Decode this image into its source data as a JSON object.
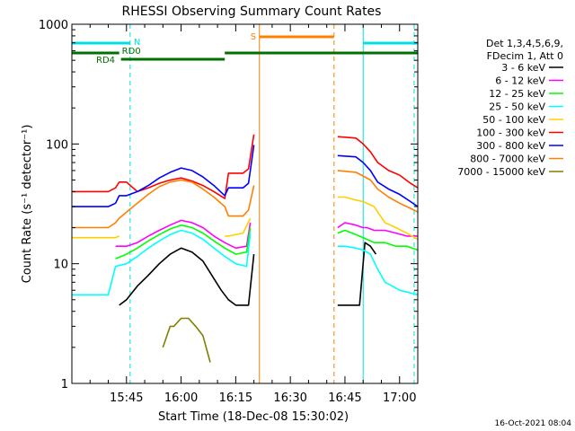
{
  "chart_data": {
    "type": "line",
    "title": "RHESSI Observing Summary Count Rates",
    "xlabel": "Start Time (18-Dec-08 15:30:02)",
    "ylabel": "Count Rate (s⁻¹ detector⁻¹)",
    "x_unit": "minutes after 15:30",
    "xlim": [
      0,
      95
    ],
    "ylim": [
      1,
      1000
    ],
    "yscale": "log",
    "x_ticks": [
      {
        "x": 15,
        "label": "15:45"
      },
      {
        "x": 30,
        "label": "16:00"
      },
      {
        "x": 45,
        "label": "16:15"
      },
      {
        "x": 60,
        "label": "16:30"
      },
      {
        "x": 75,
        "label": "16:45"
      },
      {
        "x": 90,
        "label": "17:00"
      }
    ],
    "y_ticks": [
      {
        "y": 1,
        "label": "1"
      },
      {
        "y": 10,
        "label": "10"
      },
      {
        "y": 100,
        "label": "100"
      },
      {
        "y": 1000,
        "label": "1000"
      }
    ],
    "legend_header": [
      "Det 1,3,4,5,6,9,",
      "FDecim 1, Att 0"
    ],
    "legend_position": "right",
    "footer_date": "16-Oct-2021 08:04",
    "flags": {
      "N_label": "N",
      "S_label": "S",
      "RD0_label": "RD0",
      "RD4_label": "RD4",
      "N_color": "#00e0e0",
      "S_color": "#ff8000",
      "RD_color": "#007000",
      "night_intervals": [
        [
          0,
          16
        ],
        [
          80,
          95
        ]
      ],
      "saa_interval": [
        51.5,
        72
      ],
      "rd0_interval": [
        0,
        13
      ],
      "rd4_intervals": [
        [
          13.5,
          42
        ],
        [
          42,
          95
        ]
      ],
      "cyan_verticals": [
        16,
        80,
        94
      ],
      "orange_verticals": [
        51.5,
        72
      ]
    },
    "data_gaps": [
      [
        49,
        51.5
      ],
      [
        51.5,
        72
      ]
    ],
    "series": [
      {
        "name": "3 - 6 keV",
        "color": "#000000",
        "x": [
          13,
          15,
          18,
          21,
          24,
          27,
          30,
          33,
          36,
          39,
          41,
          43,
          45,
          47,
          48.5,
          50,
          73,
          75,
          77,
          79,
          80.5,
          82,
          83.5
        ],
        "y": [
          4.5,
          5,
          6.5,
          8,
          10,
          12,
          13.5,
          12.5,
          10.5,
          7.5,
          6,
          5,
          4.5,
          4.5,
          4.5,
          12,
          4.5,
          4.5,
          4.5,
          4.5,
          15,
          14,
          12
        ]
      },
      {
        "name": "6 - 12 keV",
        "color": "#ff00ff",
        "x": [
          12,
          15,
          18,
          21,
          24,
          27,
          30,
          33,
          36,
          39,
          42,
          45,
          48,
          49,
          73,
          75,
          78,
          80,
          81,
          83,
          86,
          89,
          92,
          95
        ],
        "y": [
          14,
          14,
          15,
          17,
          19,
          21,
          23,
          22,
          20,
          17,
          15,
          13.5,
          14,
          22,
          20,
          22,
          21,
          20,
          20,
          19,
          19,
          18,
          17,
          17
        ]
      },
      {
        "name": "12 - 25 keV",
        "color": "#00ff00",
        "x": [
          12,
          15,
          18,
          21,
          24,
          27,
          30,
          33,
          36,
          39,
          42,
          45,
          48,
          49,
          73,
          75,
          78,
          80,
          81,
          83,
          86,
          89,
          92,
          95
        ],
        "y": [
          11,
          12,
          13.5,
          15.5,
          17.5,
          19.5,
          21,
          20,
          18,
          15.5,
          13.5,
          12,
          12.5,
          20,
          18,
          19,
          17.5,
          16.5,
          16,
          15,
          15,
          14,
          14,
          13
        ]
      },
      {
        "name": "25 - 50 keV",
        "color": "#00ffff",
        "x": [
          0,
          10,
          12,
          15,
          18,
          21,
          24,
          27,
          30,
          33,
          36,
          39,
          42,
          45,
          48,
          49,
          73,
          75,
          78,
          80,
          82,
          84,
          86,
          88,
          90,
          92,
          95
        ],
        "y": [
          5.5,
          5.5,
          9.5,
          10,
          11.5,
          13.5,
          15.5,
          17.5,
          19,
          18,
          16,
          13.5,
          11.5,
          10,
          9.5,
          18,
          14,
          14,
          13.5,
          13,
          12,
          9,
          7,
          6.5,
          6,
          5.8,
          5.5
        ]
      },
      {
        "name": "50 - 100 keV",
        "color": "#ffd000",
        "x": [
          0,
          12,
          13,
          42,
          43,
          47,
          49,
          73,
          75,
          78,
          80,
          83,
          86,
          89,
          92,
          95
        ],
        "y": [
          16.5,
          16.5,
          17,
          17,
          17,
          18,
          24,
          36,
          36,
          34,
          33,
          30,
          22,
          20,
          18,
          16
        ]
      },
      {
        "name": "100 - 300 keV",
        "color": "#ff0000",
        "x": [
          0,
          10,
          12,
          13,
          15,
          18,
          21,
          24,
          27,
          30,
          33,
          36,
          39,
          42,
          43,
          47,
          48.5,
          50,
          73,
          78,
          80,
          82,
          84,
          87,
          90,
          93,
          95
        ],
        "y": [
          40,
          40,
          43,
          48,
          48,
          40,
          43,
          47,
          50,
          52,
          49,
          45,
          40,
          35,
          57,
          57,
          62,
          120,
          115,
          112,
          100,
          86,
          70,
          60,
          55,
          47,
          43
        ]
      },
      {
        "name": "300 - 800 keV",
        "color": "#0000ff",
        "x": [
          0,
          10,
          12,
          13,
          15,
          18,
          21,
          24,
          27,
          30,
          33,
          36,
          39,
          42,
          43,
          47,
          48.5,
          50,
          73,
          78,
          80,
          82,
          84,
          87,
          90,
          93,
          95
        ],
        "y": [
          30,
          30,
          32,
          37,
          37,
          40,
          45,
          52,
          58,
          63,
          60,
          53,
          45,
          37,
          43,
          43,
          47,
          98,
          80,
          78,
          70,
          60,
          48,
          42,
          38,
          33,
          30
        ]
      },
      {
        "name": "800 - 7000 keV",
        "color": "#ff8000",
        "x": [
          0,
          10,
          12,
          13,
          15,
          18,
          21,
          24,
          27,
          30,
          33,
          36,
          39,
          42,
          43,
          47,
          48.5,
          50,
          73,
          78,
          80,
          82,
          84,
          87,
          90,
          93,
          95
        ],
        "y": [
          20,
          20,
          22,
          24,
          27,
          32,
          38,
          44,
          48,
          50,
          48,
          42,
          36,
          30,
          25,
          25,
          28,
          45,
          60,
          58,
          54,
          50,
          42,
          36,
          32,
          29,
          27
        ]
      },
      {
        "name": "7000 - 15000 keV",
        "color": "#808000",
        "x": [
          25,
          27,
          28,
          30,
          32,
          34,
          36,
          38
        ],
        "y": [
          2,
          3,
          3,
          3.5,
          3.5,
          3,
          2.5,
          1.5
        ]
      }
    ]
  }
}
